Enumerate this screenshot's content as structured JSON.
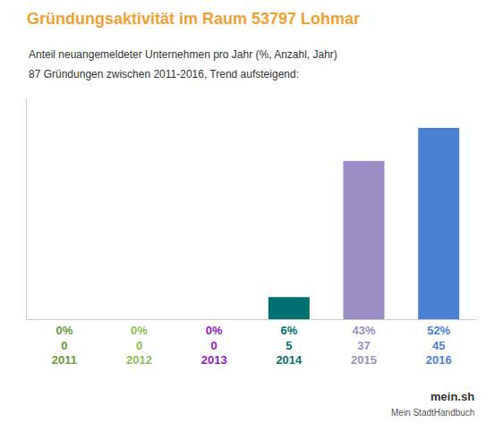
{
  "chart_data": {
    "type": "bar",
    "title": "Gründungsaktivität im Raum 53797 Lohmar",
    "subtitle": [
      "Anteil neuangemeldeter Unternehmen pro Jahr (%, Anzahl, Jahr)",
      "87 Gründungen zwischen 2011-2016, Trend aufsteigend:"
    ],
    "categories": [
      "2011",
      "2012",
      "2013",
      "2014",
      "2015",
      "2016"
    ],
    "values": [
      0,
      0,
      0,
      6,
      43,
      52
    ],
    "value_labels": [
      "0%",
      "0%",
      "0%",
      "6%",
      "43%",
      "52%"
    ],
    "counts": [
      0,
      0,
      0,
      5,
      37,
      45
    ],
    "colors": [
      "#6a9a3a",
      "#88c057",
      "#8b22b8",
      "#007070",
      "#9b8ec4",
      "#4a80d4"
    ],
    "title_color": "#f0a030",
    "ylim": [
      0,
      60
    ],
    "data_labels": true,
    "tick_labels": "x",
    "grid": false,
    "annotations": [
      "mein.sh",
      "Mein StadtHandbuch"
    ]
  }
}
